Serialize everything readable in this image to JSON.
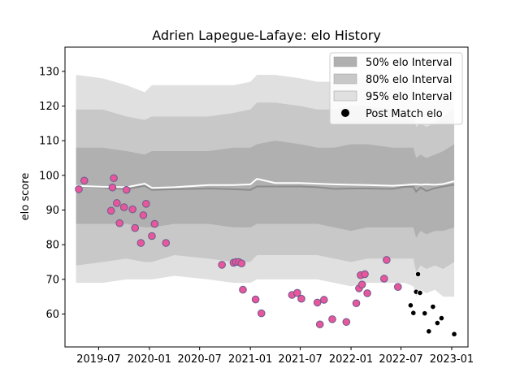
{
  "chart_data": {
    "type": "scatter",
    "title": "Adrien Lapegue-Lafaye: elo History",
    "xlabel": "",
    "ylabel": "elo score",
    "xlim": [
      "2019-03-01",
      "2023-03-01"
    ],
    "ylim": [
      50.5,
      137
    ],
    "x_ticks": [
      "2019-07-01",
      "2020-01-01",
      "2020-07-01",
      "2021-01-01",
      "2021-07-01",
      "2022-01-01",
      "2022-07-01",
      "2023-01-01"
    ],
    "x_tick_labels": [
      "2019-07",
      "2020-01",
      "2020-07",
      "2021-01",
      "2021-07",
      "2022-01",
      "2022-07",
      "2023-01"
    ],
    "y_ticks": [
      60,
      70,
      80,
      90,
      100,
      110,
      120,
      130
    ],
    "y_tick_labels": [
      "60",
      "70",
      "80",
      "90",
      "100",
      "110",
      "120",
      "130"
    ],
    "grid": false,
    "legend_position": "top-right",
    "legend": [
      {
        "label": "50% elo Interval",
        "kind": "band",
        "color": "#b0b0b0"
      },
      {
        "label": "80% elo Interval",
        "kind": "band",
        "color": "#c8c8c8"
      },
      {
        "label": "95% elo Interval",
        "kind": "band",
        "color": "#e0e0e0"
      },
      {
        "label": "Post Match elo",
        "kind": "marker",
        "color": "#000000"
      }
    ],
    "colors": {
      "band50": "#b0b0b0",
      "band80": "#c8c8c8",
      "band95": "#e0e0e0",
      "mean_line": "#ffffff",
      "median_line": "#8c8c8c",
      "history_point_fill": "#e8569b",
      "history_point_edge": "#6a5a8c",
      "recent_point": "#000000"
    },
    "band_x": [
      "2019-04-10",
      "2019-07-15",
      "2019-10-10",
      "2019-12-15",
      "2020-01-10",
      "2020-04-01",
      "2020-08-01",
      "2020-11-01",
      "2021-01-01",
      "2021-01-25",
      "2021-04-01",
      "2021-07-01",
      "2021-09-01",
      "2021-11-01",
      "2022-01-01",
      "2022-03-01",
      "2022-06-01",
      "2022-07-15",
      "2022-08-15",
      "2022-08-25",
      "2022-09-10",
      "2022-10-01",
      "2022-11-01",
      "2022-12-01",
      "2023-01-10"
    ],
    "bands": {
      "p95_upper": [
        129,
        128,
        126,
        124,
        126,
        126,
        126,
        126,
        127,
        129,
        129,
        128,
        127,
        127,
        128,
        128,
        127,
        127,
        126,
        121,
        122,
        121,
        122,
        125,
        127
      ],
      "p95_lower": [
        69,
        69,
        70,
        70,
        70,
        71,
        70,
        69,
        69,
        70,
        70,
        70,
        70,
        69,
        68,
        69,
        69,
        69,
        68,
        65,
        67,
        66,
        67,
        65,
        65
      ],
      "p80_upper": [
        119,
        119,
        117,
        116,
        117,
        117,
        117,
        118,
        119,
        121,
        121,
        120,
        119,
        119,
        120,
        120,
        119,
        119,
        118,
        114,
        115,
        114,
        115,
        117,
        119
      ],
      "p80_lower": [
        74,
        75,
        76,
        75,
        75,
        77,
        76,
        75,
        75,
        77,
        77,
        77,
        77,
        76,
        75,
        76,
        76,
        76,
        76,
        72,
        74,
        73,
        74,
        73,
        75
      ],
      "p50_upper": [
        108,
        108,
        107,
        106,
        107,
        107,
        107,
        108,
        108,
        109,
        110,
        109,
        108,
        108,
        109,
        109,
        108,
        108,
        108,
        105,
        106,
        105,
        106,
        107,
        109
      ],
      "p50_lower": [
        86,
        86,
        86,
        85,
        85,
        86,
        86,
        85,
        85,
        86,
        86,
        86,
        86,
        85,
        84,
        85,
        85,
        85,
        85,
        82,
        84,
        83,
        84,
        84,
        85
      ],
      "mean": [
        97,
        96.7,
        96.6,
        97.6,
        96.4,
        96.6,
        97.2,
        97.2,
        97.4,
        99,
        97.8,
        97.8,
        97.6,
        97.4,
        97.3,
        97.2,
        97,
        97.2,
        97.4,
        97.4,
        97.3,
        97.4,
        97.3,
        97.5,
        98.3
      ],
      "median": [
        97,
        96.5,
        96,
        97,
        95.8,
        96,
        96.2,
        96,
        95.8,
        96.8,
        96.8,
        96.8,
        96.6,
        96.1,
        96.2,
        96.2,
        96.1,
        96.7,
        96.7,
        95.3,
        96.5,
        95.5,
        96.3,
        96.8,
        97.3
      ]
    },
    "series": [
      {
        "name": "",
        "points": [
          {
            "x": "2019-04-20",
            "y": 96
          },
          {
            "x": "2019-05-10",
            "y": 98.5
          },
          {
            "x": "2019-08-15",
            "y": 89.8
          },
          {
            "x": "2019-08-20",
            "y": 96.5
          },
          {
            "x": "2019-08-25",
            "y": 99.2
          },
          {
            "x": "2019-09-05",
            "y": 92
          },
          {
            "x": "2019-09-15",
            "y": 86.2
          },
          {
            "x": "2019-10-01",
            "y": 90.8
          },
          {
            "x": "2019-10-10",
            "y": 95.8
          },
          {
            "x": "2019-11-01",
            "y": 90.2
          },
          {
            "x": "2019-11-10",
            "y": 84.8
          },
          {
            "x": "2019-12-01",
            "y": 80.5
          },
          {
            "x": "2019-12-10",
            "y": 88.5
          },
          {
            "x": "2019-12-20",
            "y": 91.8
          },
          {
            "x": "2020-01-10",
            "y": 82.5
          },
          {
            "x": "2020-01-20",
            "y": 86
          },
          {
            "x": "2020-03-01",
            "y": 80.5
          },
          {
            "x": "2020-09-20",
            "y": 74.2
          },
          {
            "x": "2020-11-01",
            "y": 74.8
          },
          {
            "x": "2020-11-10",
            "y": 75
          },
          {
            "x": "2020-11-20",
            "y": 75
          },
          {
            "x": "2020-11-30",
            "y": 74.6
          },
          {
            "x": "2020-12-05",
            "y": 67
          },
          {
            "x": "2021-01-20",
            "y": 64.2
          },
          {
            "x": "2021-02-10",
            "y": 60.2
          },
          {
            "x": "2021-06-01",
            "y": 65.5
          },
          {
            "x": "2021-06-20",
            "y": 66.1
          },
          {
            "x": "2021-07-05",
            "y": 64.4
          },
          {
            "x": "2021-09-01",
            "y": 63.3
          },
          {
            "x": "2021-09-10",
            "y": 57
          },
          {
            "x": "2021-09-25",
            "y": 64.1
          },
          {
            "x": "2021-10-25",
            "y": 58.5
          },
          {
            "x": "2021-12-15",
            "y": 57.7
          },
          {
            "x": "2022-01-20",
            "y": 63.1
          },
          {
            "x": "2022-01-30",
            "y": 67.4
          },
          {
            "x": "2022-02-05",
            "y": 71.2
          },
          {
            "x": "2022-02-10",
            "y": 68.5
          },
          {
            "x": "2022-02-20",
            "y": 71.5
          },
          {
            "x": "2022-03-01",
            "y": 66
          },
          {
            "x": "2022-05-01",
            "y": 70.2
          },
          {
            "x": "2022-05-10",
            "y": 75.6
          },
          {
            "x": "2022-06-20",
            "y": 67.8
          }
        ]
      },
      {
        "name": "Post Match elo",
        "points": [
          {
            "x": "2022-08-05",
            "y": 62.5
          },
          {
            "x": "2022-08-15",
            "y": 60.3
          },
          {
            "x": "2022-08-25",
            "y": 66.4
          },
          {
            "x": "2022-09-01",
            "y": 71.5
          },
          {
            "x": "2022-09-08",
            "y": 66.1
          },
          {
            "x": "2022-09-25",
            "y": 60.2
          },
          {
            "x": "2022-10-10",
            "y": 55
          },
          {
            "x": "2022-10-25",
            "y": 62.1
          },
          {
            "x": "2022-11-10",
            "y": 57.4
          },
          {
            "x": "2022-11-25",
            "y": 58.8
          },
          {
            "x": "2023-01-10",
            "y": 54.2
          }
        ]
      }
    ]
  }
}
